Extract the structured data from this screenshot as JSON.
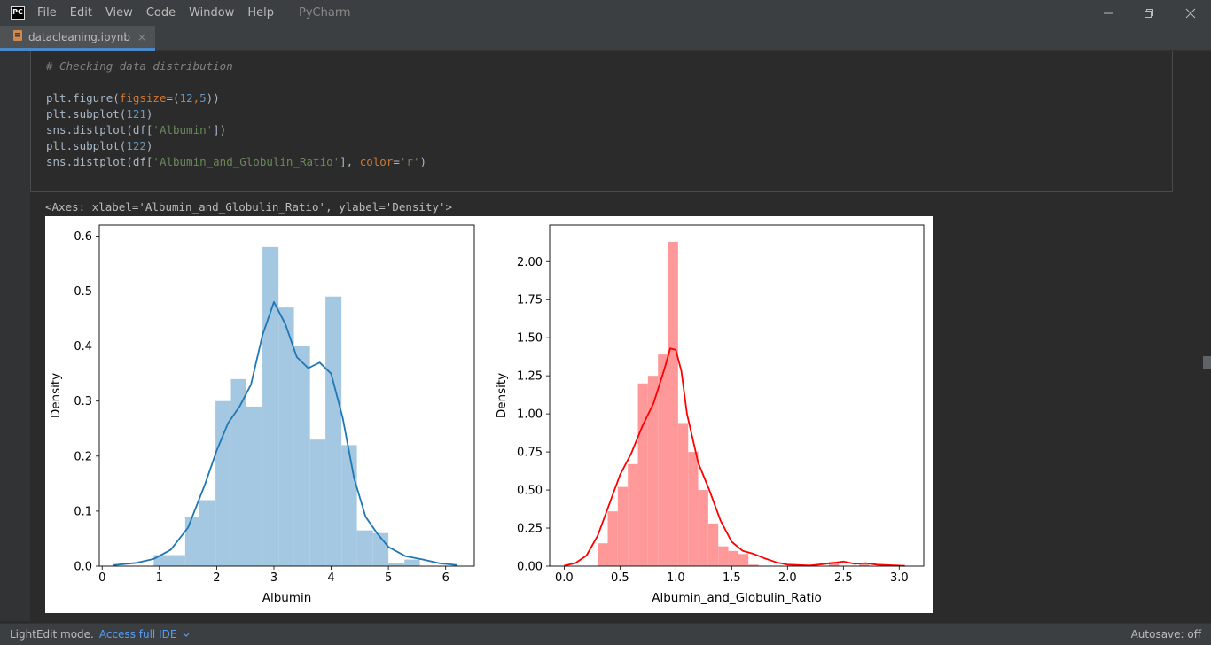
{
  "window": {
    "app_icon": "PC",
    "menu": [
      "File",
      "Edit",
      "View",
      "Code",
      "Window",
      "Help"
    ],
    "app_name": "PyCharm"
  },
  "tab": {
    "filename": "datacleaning.ipynb",
    "close": "×"
  },
  "code": {
    "comment": "# Checking data distribution",
    "lines": [
      [
        {
          "t": "plt.figure(",
          "c": ""
        },
        {
          "t": "figsize",
          "c": "kw"
        },
        {
          "t": "=(",
          "c": ""
        },
        {
          "t": "12",
          "c": "num"
        },
        {
          "t": ",",
          "c": "kw"
        },
        {
          "t": "5",
          "c": "num"
        },
        {
          "t": "))",
          "c": ""
        }
      ],
      [
        {
          "t": "plt.subplot(",
          "c": ""
        },
        {
          "t": "121",
          "c": "num"
        },
        {
          "t": ")",
          "c": ""
        }
      ],
      [
        {
          "t": "sns.distplot(df[",
          "c": ""
        },
        {
          "t": "'Albumin'",
          "c": "str"
        },
        {
          "t": "])",
          "c": ""
        }
      ],
      [
        {
          "t": "plt.subplot(",
          "c": ""
        },
        {
          "t": "122",
          "c": "num"
        },
        {
          "t": ")",
          "c": ""
        }
      ],
      [
        {
          "t": "sns.distplot(df[",
          "c": ""
        },
        {
          "t": "'Albumin_and_Globulin_Ratio'",
          "c": "str"
        },
        {
          "t": "], ",
          "c": ""
        },
        {
          "t": "color",
          "c": "kw"
        },
        {
          "t": "=",
          "c": ""
        },
        {
          "t": "'r'",
          "c": "str"
        },
        {
          "t": ")",
          "c": ""
        }
      ]
    ]
  },
  "output": {
    "text": "<Axes: xlabel='Albumin_and_Globulin_Ratio', ylabel='Density'>"
  },
  "status": {
    "mode": "LightEdit mode.",
    "link": "Access full IDE",
    "autosave": "Autosave: off"
  },
  "chart_data": [
    {
      "type": "bar",
      "xlabel": "Albumin",
      "ylabel": "Density",
      "xlim": [
        -0.05,
        6.5
      ],
      "ylim": [
        0,
        0.62
      ],
      "xticks": [
        0,
        1,
        2,
        3,
        4,
        5,
        6
      ],
      "yticks": [
        0.0,
        0.1,
        0.2,
        0.3,
        0.4,
        0.5,
        0.6
      ],
      "ytick_labels": [
        "0.0",
        "0.1",
        "0.2",
        "0.3",
        "0.4",
        "0.5",
        "0.6"
      ],
      "bin_edges": [
        0.9,
        1.45,
        1.7,
        1.98,
        2.25,
        2.52,
        2.8,
        3.08,
        3.35,
        3.63,
        3.9,
        4.18,
        4.45,
        4.73,
        5.0,
        5.28,
        5.55
      ],
      "values": [
        0.02,
        0.09,
        0.12,
        0.3,
        0.34,
        0.29,
        0.58,
        0.47,
        0.4,
        0.23,
        0.49,
        0.22,
        0.065,
        0.06,
        0.005,
        0.012
      ],
      "kde_x": [
        0.2,
        0.6,
        0.9,
        1.2,
        1.5,
        1.8,
        2.0,
        2.2,
        2.4,
        2.6,
        2.8,
        3.0,
        3.2,
        3.4,
        3.6,
        3.8,
        4.0,
        4.2,
        4.4,
        4.6,
        4.8,
        5.0,
        5.3,
        5.6,
        5.9,
        6.2
      ],
      "kde_y": [
        0.002,
        0.006,
        0.013,
        0.03,
        0.07,
        0.15,
        0.21,
        0.26,
        0.29,
        0.33,
        0.42,
        0.48,
        0.44,
        0.38,
        0.36,
        0.37,
        0.35,
        0.27,
        0.16,
        0.09,
        0.06,
        0.035,
        0.018,
        0.012,
        0.005,
        0.002
      ],
      "bar_color": "#a4c8e1",
      "line_color": "#1f77b4"
    },
    {
      "type": "bar",
      "xlabel": "Albumin_and_Globulin_Ratio",
      "ylabel": "Density",
      "xlim": [
        -0.13,
        3.22
      ],
      "ylim": [
        0,
        2.24
      ],
      "xticks": [
        0.0,
        0.5,
        1.0,
        1.5,
        2.0,
        2.5,
        3.0
      ],
      "xtick_labels": [
        "0.0",
        "0.5",
        "1.0",
        "1.5",
        "2.0",
        "2.5",
        "3.0"
      ],
      "yticks": [
        0.0,
        0.25,
        0.5,
        0.75,
        1.0,
        1.25,
        1.5,
        1.75,
        2.0
      ],
      "ytick_labels": [
        "0.00",
        "0.25",
        "0.50",
        "0.75",
        "1.00",
        "1.25",
        "1.50",
        "1.75",
        "2.00"
      ],
      "bin_edges": [
        0.3,
        0.39,
        0.48,
        0.57,
        0.66,
        0.75,
        0.84,
        0.93,
        1.02,
        1.11,
        1.2,
        1.29,
        1.38,
        1.47,
        1.56,
        1.65,
        1.74,
        1.83,
        1.92,
        2.01,
        2.1,
        2.19,
        2.28,
        2.37,
        2.46,
        2.55,
        2.64,
        2.73,
        2.82
      ],
      "values": [
        0.15,
        0.36,
        0.52,
        0.67,
        1.2,
        1.25,
        1.39,
        2.13,
        0.94,
        0.75,
        0.5,
        0.28,
        0.13,
        0.1,
        0.08,
        0.01,
        0.0,
        0.0,
        0.0,
        0.0,
        0.0,
        0.0,
        0.0,
        0.03,
        0.0,
        0.0,
        0.02,
        0.0
      ],
      "kde_x": [
        0.0,
        0.1,
        0.2,
        0.3,
        0.4,
        0.5,
        0.6,
        0.7,
        0.8,
        0.9,
        0.95,
        1.0,
        1.05,
        1.1,
        1.2,
        1.3,
        1.4,
        1.5,
        1.6,
        1.7,
        1.8,
        1.9,
        2.0,
        2.2,
        2.4,
        2.5,
        2.6,
        2.7,
        2.8,
        3.05
      ],
      "kde_y": [
        0.003,
        0.02,
        0.07,
        0.2,
        0.4,
        0.6,
        0.74,
        0.92,
        1.07,
        1.3,
        1.43,
        1.42,
        1.28,
        1.0,
        0.68,
        0.5,
        0.3,
        0.16,
        0.1,
        0.08,
        0.05,
        0.025,
        0.01,
        0.004,
        0.02,
        0.03,
        0.015,
        0.02,
        0.01,
        0.002
      ],
      "bar_color": "#ff9999",
      "line_color": "#ff0000"
    }
  ]
}
